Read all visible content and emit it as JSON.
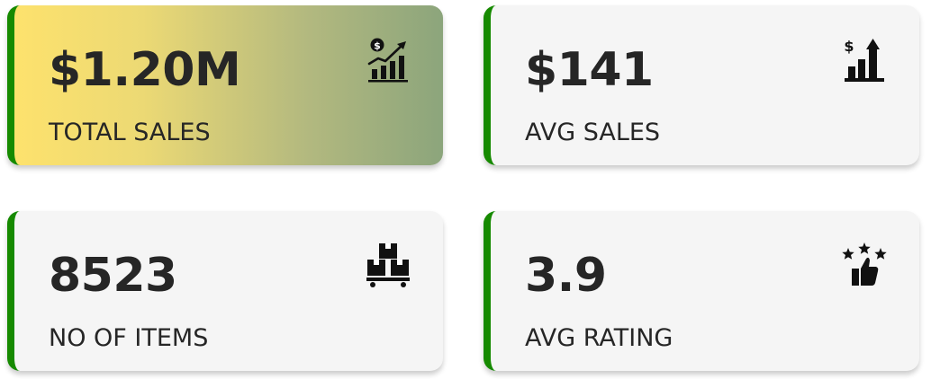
{
  "cards": [
    {
      "value": "$1.20M",
      "label": "TOTAL SALES",
      "icon": "sales-growth-icon"
    },
    {
      "value": "$141",
      "label": "AVG SALES",
      "icon": "dollar-bar-chart-icon"
    },
    {
      "value": "8523",
      "label": "NO OF ITEMS",
      "icon": "boxes-icon"
    },
    {
      "value": "3.9",
      "label": "AVG RATING",
      "icon": "rating-thumbs-up-icon"
    }
  ],
  "colors": {
    "accent_border": "#168a00",
    "card_background": "#f5f5f5",
    "gradient_start": "#fde26d",
    "gradient_end": "#8ca57c",
    "text": "#262626"
  }
}
